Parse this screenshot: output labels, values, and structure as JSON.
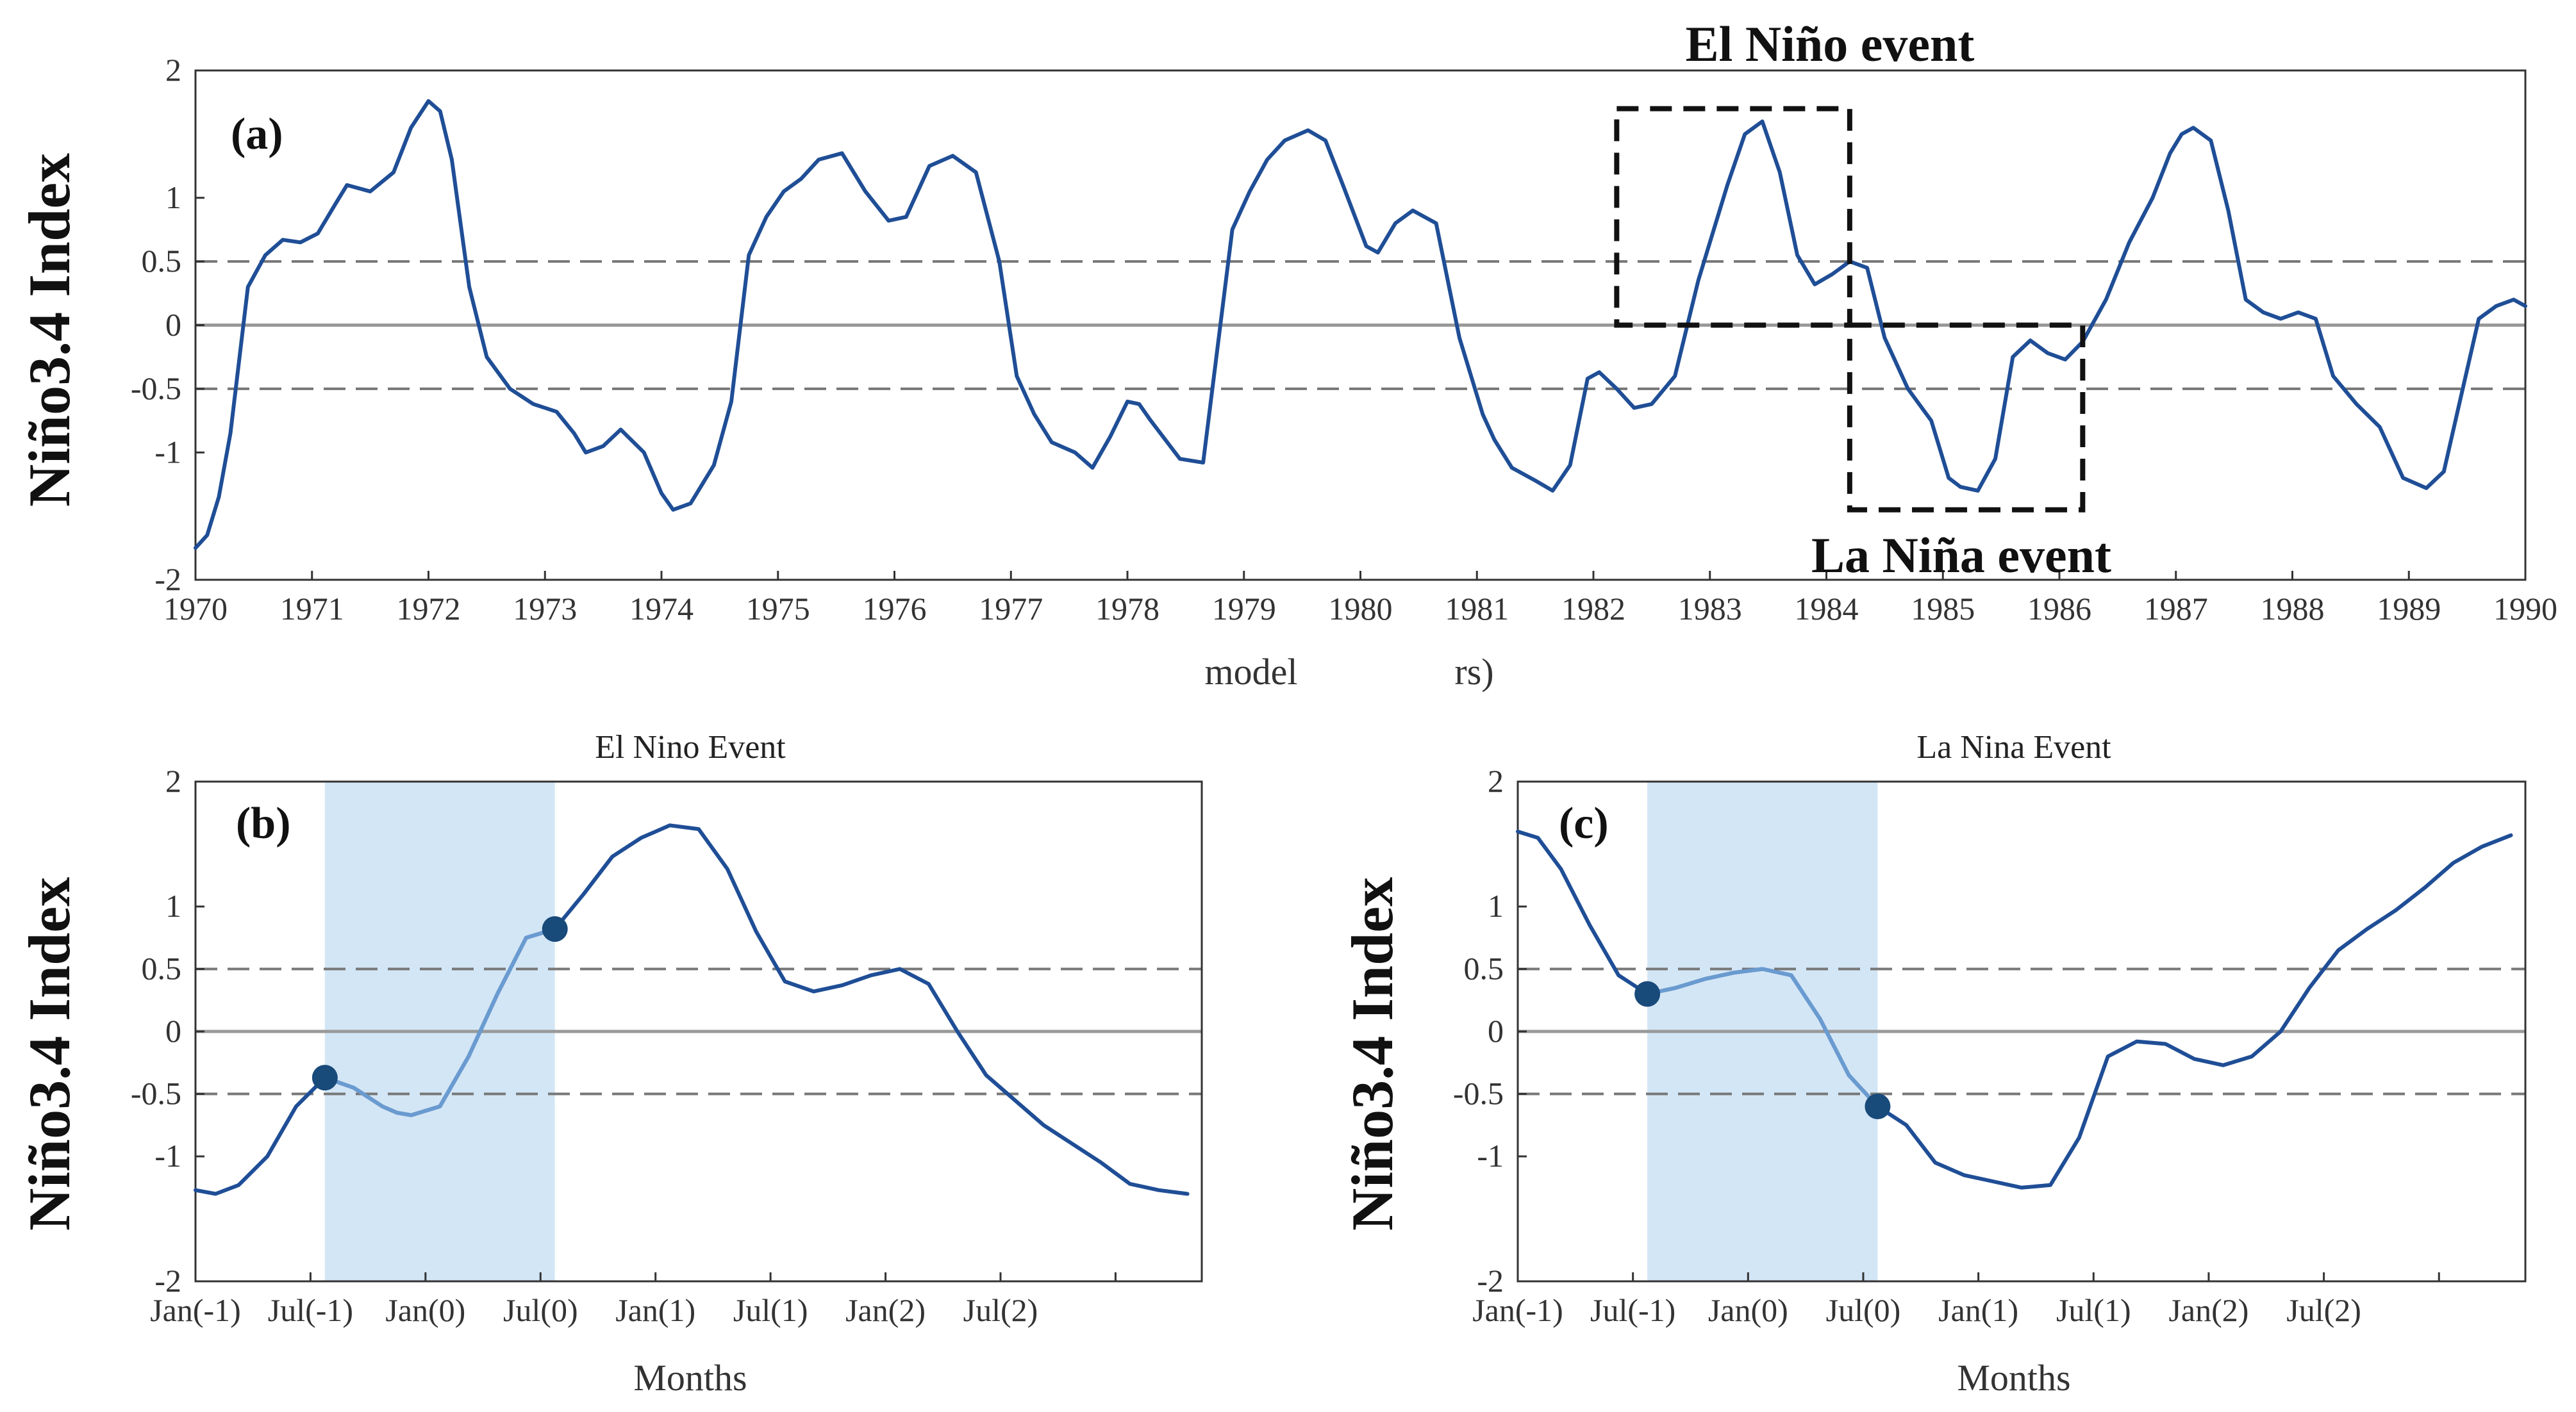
{
  "figure": {
    "colors": {
      "series": "#1f4e96",
      "shade": "#d3e6f6",
      "shade_line": "#6a9bd0",
      "marker": "#184a7a",
      "refline": "#777777",
      "zeroline": "#999999",
      "box": "#111111"
    }
  },
  "chart_data": [
    {
      "id": "a",
      "type": "line",
      "panel_label": "(a)",
      "title": "",
      "ylabel": "Niño3.4 Index",
      "xlabel_left": "model",
      "xlabel_right": "rs)",
      "xlim": [
        1970,
        1990
      ],
      "ylim": [
        -2,
        2
      ],
      "yticks": [
        2,
        1,
        0.5,
        0,
        -0.5,
        -1,
        -2
      ],
      "ytick_labels": [
        "2",
        "1",
        "0.5",
        "0",
        "-0.5",
        "-1",
        "-2"
      ],
      "xticks": [
        1970,
        1971,
        1972,
        1973,
        1974,
        1975,
        1976,
        1977,
        1978,
        1979,
        1980,
        1981,
        1982,
        1983,
        1984,
        1985,
        1986,
        1987,
        1988,
        1989,
        1990
      ],
      "xtick_labels": [
        "1970",
        "1971",
        "1972",
        "1973",
        "1974",
        "1975",
        "1976",
        "1977",
        "1978",
        "1979",
        "1980",
        "1981",
        "1982",
        "1983",
        "1984",
        "1985",
        "1986",
        "1987",
        "1988",
        "1989",
        "1990"
      ],
      "ref_dashed": [
        0.5,
        -0.5
      ],
      "ref_solid": [
        0
      ],
      "series": [
        {
          "name": "Niño3.4 Index",
          "x": [
            1970.0,
            1970.1,
            1970.2,
            1970.3,
            1970.45,
            1970.6,
            1970.75,
            1970.9,
            1971.05,
            1971.2,
            1971.3,
            1971.5,
            1971.7,
            1971.85,
            1972.0,
            1972.1,
            1972.2,
            1972.35,
            1972.5,
            1972.7,
            1972.9,
            1973.0,
            1973.1,
            1973.25,
            1973.35,
            1973.5,
            1973.65,
            1973.85,
            1974.0,
            1974.1,
            1974.25,
            1974.45,
            1974.6,
            1974.75,
            1974.9,
            1975.05,
            1975.2,
            1975.35,
            1975.55,
            1975.75,
            1975.95,
            1976.1,
            1976.3,
            1976.5,
            1976.7,
            1976.9,
            1977.05,
            1977.2,
            1977.35,
            1977.55,
            1977.7,
            1977.85,
            1978.0,
            1978.1,
            1978.2,
            1978.45,
            1978.65,
            1978.9,
            1979.05,
            1979.2,
            1979.35,
            1979.55,
            1979.7,
            1979.85,
            1980.05,
            1980.15,
            1980.3,
            1980.45,
            1980.65,
            1980.85,
            1981.05,
            1981.15,
            1981.3,
            1981.5,
            1981.65,
            1981.8,
            1981.95,
            1982.05,
            1982.2,
            1982.35,
            1982.5,
            1982.7,
            1982.9,
            1983.05,
            1983.15,
            1983.3,
            1983.45,
            1983.6,
            1983.75,
            1983.9,
            1984.05,
            1984.2,
            1984.35,
            1984.5,
            1984.7,
            1984.9,
            1985.05,
            1985.15,
            1985.3,
            1985.45,
            1985.6,
            1985.75,
            1985.9,
            1986.05,
            1986.2,
            1986.4,
            1986.6,
            1986.8,
            1986.95,
            1987.05,
            1987.15,
            1987.3,
            1987.45,
            1987.6,
            1987.75,
            1987.9,
            1988.05,
            1988.2,
            1988.35,
            1988.55,
            1988.75,
            1988.95,
            1989.15,
            1989.3,
            1989.45,
            1989.6,
            1989.75,
            1989.9,
            1990.0
          ],
          "y": [
            -1.75,
            -1.65,
            -1.35,
            -0.85,
            0.3,
            0.55,
            0.67,
            0.65,
            0.72,
            0.95,
            1.1,
            1.05,
            1.2,
            1.55,
            1.76,
            1.68,
            1.3,
            0.3,
            -0.25,
            -0.5,
            -0.62,
            -0.65,
            -0.68,
            -0.85,
            -1.0,
            -0.95,
            -0.82,
            -1.0,
            -1.32,
            -1.45,
            -1.4,
            -1.1,
            -0.6,
            0.55,
            0.85,
            1.05,
            1.15,
            1.3,
            1.35,
            1.05,
            0.82,
            0.85,
            1.25,
            1.33,
            1.2,
            0.5,
            -0.4,
            -0.7,
            -0.92,
            -1.0,
            -1.12,
            -0.88,
            -0.6,
            -0.62,
            -0.75,
            -1.05,
            -1.08,
            0.75,
            1.05,
            1.3,
            1.45,
            1.53,
            1.45,
            1.1,
            0.62,
            0.57,
            0.8,
            0.9,
            0.8,
            -0.1,
            -0.7,
            -0.9,
            -1.12,
            -1.22,
            -1.3,
            -1.1,
            -0.42,
            -0.37,
            -0.5,
            -0.65,
            -0.62,
            -0.4,
            0.35,
            0.8,
            1.1,
            1.5,
            1.6,
            1.2,
            0.55,
            0.32,
            0.4,
            0.5,
            0.45,
            -0.1,
            -0.5,
            -0.75,
            -1.2,
            -1.27,
            -1.3,
            -1.05,
            -0.25,
            -0.12,
            -0.22,
            -0.27,
            -0.13,
            0.2,
            0.65,
            1.0,
            1.35,
            1.5,
            1.55,
            1.45,
            0.9,
            0.2,
            0.1,
            0.05,
            0.1,
            0.05,
            -0.4,
            -0.62,
            -0.8,
            -1.2,
            -1.28,
            -1.15,
            -0.55,
            0.05,
            0.15,
            0.2,
            0.15
          ]
        }
      ],
      "annotations": [
        {
          "text": "El Niño event",
          "box_x": [
            1982.2,
            1984.2
          ],
          "box_y": [
            0,
            1.7
          ]
        },
        {
          "text": "La Niña event",
          "box_x": [
            1984.2,
            1986.2
          ],
          "box_y": [
            -1.45,
            0
          ]
        }
      ]
    },
    {
      "id": "b",
      "type": "line",
      "panel_label": "(b)",
      "title": "El Nino Event",
      "ylabel": "Niño3.4 Index",
      "xlabel": "Months",
      "xlim": [
        0,
        35
      ],
      "ylim": [
        -2,
        2
      ],
      "yticks": [
        2,
        1,
        0.5,
        0,
        -0.5,
        -1,
        -2
      ],
      "ytick_labels": [
        "2",
        "1",
        "0.5",
        "0",
        "-0.5",
        "-1",
        "-2"
      ],
      "xticks": [
        0,
        4,
        8,
        12,
        16,
        20,
        24,
        28,
        32
      ],
      "xtick_labels": [
        "Jan(-1)",
        "Jul(-1)",
        "Jan(0)",
        "Jul(0)",
        "Jan(1)",
        "Jul(1)",
        "Jan(2)",
        "Jul(2)",
        ""
      ],
      "ref_dashed": [
        0.5,
        -0.5
      ],
      "ref_solid": [
        0
      ],
      "shaded_x": [
        4.5,
        12.5
      ],
      "markers": [
        {
          "x": 4.5,
          "y": -0.37
        },
        {
          "x": 12.5,
          "y": 0.82
        }
      ],
      "series": [
        {
          "name": "Niño3.4 Index",
          "x": [
            0,
            0.7,
            1.5,
            2.5,
            3.5,
            4.5,
            5.5,
            6.5,
            7.0,
            7.5,
            8.5,
            9.5,
            10.5,
            11.5,
            12.5,
            13.5,
            14.5,
            15.5,
            16.5,
            17.5,
            18.5,
            19.5,
            20.5,
            21.5,
            22.5,
            23.5,
            24.5,
            25.5,
            26.5,
            27.5,
            28.5,
            29.5,
            30.5,
            31.5,
            32.5,
            33.5,
            34.5
          ],
          "y": [
            -1.27,
            -1.3,
            -1.23,
            -1.0,
            -0.6,
            -0.37,
            -0.45,
            -0.6,
            -0.65,
            -0.67,
            -0.6,
            -0.2,
            0.3,
            0.75,
            0.82,
            1.1,
            1.4,
            1.55,
            1.65,
            1.62,
            1.3,
            0.8,
            0.4,
            0.32,
            0.37,
            0.45,
            0.5,
            0.38,
            0.0,
            -0.35,
            -0.55,
            -0.75,
            -0.9,
            -1.05,
            -1.22,
            -1.27,
            -1.3
          ]
        }
      ]
    },
    {
      "id": "c",
      "type": "line",
      "panel_label": "(c)",
      "title": "La Nina Event",
      "ylabel": "Niño3.4 Index",
      "xlabel": "Months",
      "xlim": [
        0,
        35
      ],
      "ylim": [
        -2,
        2
      ],
      "yticks": [
        2,
        1,
        0.5,
        0,
        -0.5,
        -1,
        -2
      ],
      "ytick_labels": [
        "2",
        "1",
        "0.5",
        "0",
        "-0.5",
        "-1",
        "-2"
      ],
      "xticks": [
        0,
        4,
        8,
        12,
        16,
        20,
        24,
        28,
        32
      ],
      "xtick_labels": [
        "Jan(-1)",
        "Jul(-1)",
        "Jan(0)",
        "Jul(0)",
        "Jan(1)",
        "Jul(1)",
        "Jan(2)",
        "Jul(2)",
        ""
      ],
      "ref_dashed": [
        0.5,
        -0.5
      ],
      "ref_solid": [
        0
      ],
      "shaded_x": [
        4.5,
        12.5
      ],
      "markers": [
        {
          "x": 4.5,
          "y": 0.3
        },
        {
          "x": 12.5,
          "y": -0.6
        }
      ],
      "series": [
        {
          "name": "Niño3.4 Index",
          "x": [
            0,
            0.7,
            1.5,
            2.5,
            3.5,
            4.5,
            5.5,
            6.5,
            7.5,
            8.5,
            9.5,
            10.5,
            11.5,
            12.5,
            13.5,
            14.5,
            15.5,
            16.5,
            17.5,
            18.5,
            19.5,
            20.5,
            21.5,
            22.5,
            23.5,
            24.5,
            25.5,
            26.5,
            27.5,
            28.5,
            29.5,
            30.5,
            31.5,
            32.5,
            33.5,
            34.5
          ],
          "y": [
            1.6,
            1.55,
            1.3,
            0.85,
            0.45,
            0.3,
            0.35,
            0.42,
            0.47,
            0.5,
            0.45,
            0.1,
            -0.35,
            -0.6,
            -0.75,
            -1.05,
            -1.15,
            -1.2,
            -1.25,
            -1.23,
            -0.85,
            -0.2,
            -0.08,
            -0.1,
            -0.22,
            -0.27,
            -0.2,
            0.0,
            0.35,
            0.65,
            0.82,
            0.97,
            1.15,
            1.35,
            1.48,
            1.57
          ]
        }
      ]
    }
  ]
}
